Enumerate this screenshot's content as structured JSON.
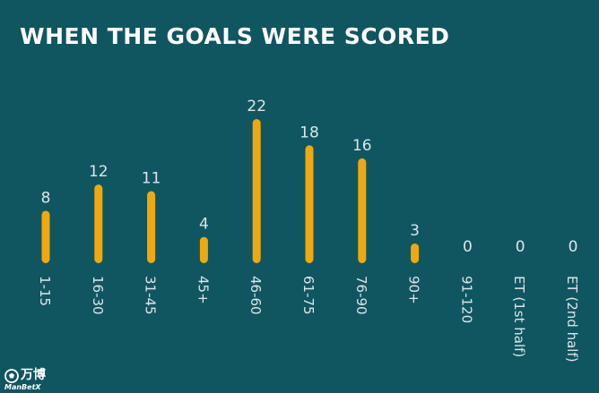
{
  "chart_data": {
    "type": "bar",
    "title": "WHEN THE GOALS WERE SCORED",
    "categories": [
      "1-15",
      "16-30",
      "31-45",
      "45+",
      "46-60",
      "61-75",
      "76-90",
      "90+",
      "91-120",
      "ET (1st half)",
      "ET (2nd half)"
    ],
    "values": [
      8,
      12,
      11,
      4,
      22,
      18,
      16,
      3,
      0,
      0,
      0
    ],
    "ylim": [
      0,
      22
    ],
    "grid": false,
    "colors": {
      "background": "#105661",
      "bar": "#f0a80f",
      "text": "#d9e6e8",
      "title": "#ffffff"
    }
  },
  "watermark": {
    "chinese": "万博",
    "english": "ManBetX",
    "logo_icon": "soccer-ball-icon"
  }
}
